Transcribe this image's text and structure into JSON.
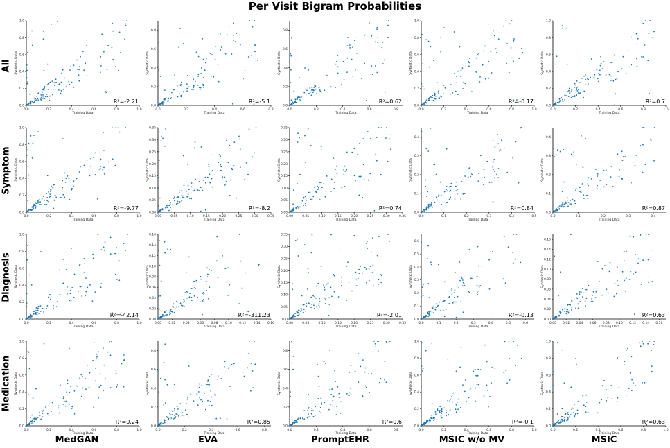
{
  "title": "Per Visit Bigram Probabilities",
  "row_labels": [
    "All",
    "Symptom",
    "Diagnosis",
    "Medication"
  ],
  "col_labels": [
    "MedGAN",
    "EVA",
    "PromptEHR",
    "MSIC w/o MV",
    "MSIC"
  ],
  "point_color": "#1f77b4",
  "chart_data": {
    "type": "scatter",
    "xlabel": "Training Data",
    "ylabel": "Synthetic Data",
    "panels": [
      {
        "row": "All",
        "model": "MedGAN",
        "r2": "R²=-2.21",
        "xlim": [
          0,
          1
        ],
        "ylim": [
          0,
          1
        ],
        "xticks": [
          "0.0",
          "0.2",
          "0.4",
          "0.6",
          "0.8",
          "1.0"
        ],
        "yticks": [
          "0.0",
          "0.2",
          "0.4",
          "0.6",
          "0.8",
          "1.0"
        ]
      },
      {
        "row": "All",
        "model": "EVA",
        "r2": "R²=-5.1",
        "xlim": [
          0,
          0.8
        ],
        "ylim": [
          0,
          0.9
        ],
        "xticks": [
          "0.0",
          "0.2",
          "0.4",
          "0.6",
          "0.8"
        ],
        "yticks": [
          "0.0",
          "0.2",
          "0.4",
          "0.6",
          "0.8"
        ]
      },
      {
        "row": "All",
        "model": "PromptEHR",
        "r2": "R²=0.62",
        "xlim": [
          0,
          0.85
        ],
        "ylim": [
          0,
          0.9
        ],
        "xticks": [
          "0.0",
          "0.2",
          "0.4",
          "0.6",
          "0.8"
        ],
        "yticks": [
          "0.0",
          "0.2",
          "0.4",
          "0.6",
          "0.8"
        ]
      },
      {
        "row": "All",
        "model": "MSIC w/o MV",
        "r2": "R²=-0.17",
        "xlim": [
          0,
          1
        ],
        "ylim": [
          0,
          1
        ],
        "xticks": [
          "0.0",
          "0.2",
          "0.4",
          "0.6",
          "0.8",
          "1.0"
        ],
        "yticks": [
          "0.0",
          "0.2",
          "0.4",
          "0.6",
          "0.8",
          "1.0"
        ]
      },
      {
        "row": "All",
        "model": "MSIC",
        "r2": "R²=0.7",
        "xlim": [
          0,
          1
        ],
        "ylim": [
          0,
          1
        ],
        "xticks": [
          "0.0",
          "0.2",
          "0.4",
          "0.6",
          "0.8",
          "1.0"
        ],
        "yticks": [
          "0.0",
          "0.2",
          "0.4",
          "0.6",
          "0.8",
          "1.0"
        ]
      },
      {
        "row": "Symptom",
        "model": "MedGAN",
        "r2": "R²=-9.77",
        "xlim": [
          0,
          1
        ],
        "ylim": [
          0,
          1
        ],
        "xticks": [
          "0.0",
          "0.2",
          "0.4",
          "0.6",
          "0.8",
          "1.0"
        ],
        "yticks": [
          "0.0",
          "0.2",
          "0.4",
          "0.6",
          "0.8",
          "1.0"
        ]
      },
      {
        "row": "Symptom",
        "model": "EVA",
        "r2": "R²=-8.2",
        "xlim": [
          0,
          0.35
        ],
        "ylim": [
          0,
          0.35
        ],
        "xticks": [
          "0.00",
          "0.05",
          "0.10",
          "0.15",
          "0.20",
          "0.25",
          "0.30",
          "0.35"
        ],
        "yticks": [
          "0.00",
          "0.05",
          "0.10",
          "0.15",
          "0.20",
          "0.25",
          "0.30",
          "0.35"
        ]
      },
      {
        "row": "Symptom",
        "model": "PromptEHR",
        "r2": "R²=0.74",
        "xlim": [
          0,
          0.35
        ],
        "ylim": [
          0,
          0.35
        ],
        "xticks": [
          "0.00",
          "0.05",
          "0.10",
          "0.15",
          "0.20",
          "0.25",
          "0.30",
          "0.35"
        ],
        "yticks": [
          "0.00",
          "0.05",
          "0.10",
          "0.15",
          "0.20",
          "0.25",
          "0.30",
          "0.35"
        ]
      },
      {
        "row": "Symptom",
        "model": "MSIC w/o MV",
        "r2": "R²=0.84",
        "xlim": [
          0,
          0.5
        ],
        "ylim": [
          0,
          0.45
        ],
        "xticks": [
          "0.0",
          "0.1",
          "0.2",
          "0.3",
          "0.4",
          "0.5"
        ],
        "yticks": [
          "0.0",
          "0.1",
          "0.2",
          "0.3",
          "0.4"
        ]
      },
      {
        "row": "Symptom",
        "model": "MSIC",
        "r2": "R²=0.87",
        "xlim": [
          0,
          0.45
        ],
        "ylim": [
          0,
          0.45
        ],
        "xticks": [
          "0.0",
          "0.1",
          "0.2",
          "0.3",
          "0.4"
        ],
        "yticks": [
          "0.0",
          "0.1",
          "0.2",
          "0.3",
          "0.4"
        ]
      },
      {
        "row": "Diagnosis",
        "model": "MedGAN",
        "r2": "R²=-42.14",
        "xlim": [
          0,
          1
        ],
        "ylim": [
          0,
          1
        ],
        "xticks": [
          "0.0",
          "0.2",
          "0.4",
          "0.6",
          "0.8",
          "1.0"
        ],
        "yticks": [
          "0.0",
          "0.2",
          "0.4",
          "0.6",
          "0.8",
          "1.0"
        ]
      },
      {
        "row": "Diagnosis",
        "model": "EVA",
        "r2": "R²=-311.23",
        "xlim": [
          0,
          0.16
        ],
        "ylim": [
          0,
          0.16
        ],
        "xticks": [
          "0.00",
          "0.02",
          "0.04",
          "0.06",
          "0.08",
          "0.10",
          "0.12",
          "0.14",
          "0.16"
        ],
        "yticks": [
          "0.00",
          "0.02",
          "0.04",
          "0.06",
          "0.08",
          "0.10",
          "0.12",
          "0.14",
          "0.16"
        ]
      },
      {
        "row": "Diagnosis",
        "model": "PromptEHR",
        "r2": "R²=-2.01",
        "xlim": [
          0,
          0.35
        ],
        "ylim": [
          0,
          0.35
        ],
        "xticks": [
          "0.00",
          "0.05",
          "0.10",
          "0.15",
          "0.20",
          "0.25",
          "0.30",
          "0.35"
        ],
        "yticks": [
          "0.00",
          "0.05",
          "0.10",
          "0.15",
          "0.20",
          "0.25",
          "0.30",
          "0.35"
        ]
      },
      {
        "row": "Diagnosis",
        "model": "MSIC w/o MV",
        "r2": "R²=-0.13",
        "xlim": [
          0,
          0.65
        ],
        "ylim": [
          0,
          0.65
        ],
        "xticks": [
          "0.0",
          "0.1",
          "0.2",
          "0.3",
          "0.4",
          "0.5",
          "0.6"
        ],
        "yticks": [
          "0.0",
          "0.1",
          "0.2",
          "0.3",
          "0.4",
          "0.5",
          "0.6"
        ]
      },
      {
        "row": "Diagnosis",
        "model": "MSIC",
        "r2": "R²=0.63",
        "xlim": [
          0,
          0.17
        ],
        "ylim": [
          0,
          0.17
        ],
        "xticks": [
          "0.00",
          "0.02",
          "0.04",
          "0.06",
          "0.08",
          "0.10",
          "0.12",
          "0.14",
          "0.16"
        ],
        "yticks": [
          "0.00",
          "0.02",
          "0.04",
          "0.06",
          "0.08",
          "0.10",
          "0.12",
          "0.14",
          "0.16"
        ]
      },
      {
        "row": "Medication",
        "model": "MedGAN",
        "r2": "R²=0.24",
        "xlim": [
          0,
          1
        ],
        "ylim": [
          0,
          1
        ],
        "xticks": [
          "0.0",
          "0.2",
          "0.4",
          "0.6",
          "0.8",
          "1.0"
        ],
        "yticks": [
          "0.0",
          "0.2",
          "0.4",
          "0.6",
          "0.8",
          "1.0"
        ]
      },
      {
        "row": "Medication",
        "model": "EVA",
        "r2": "R²=0.85",
        "xlim": [
          0,
          0.85
        ],
        "ylim": [
          0,
          0.9
        ],
        "xticks": [
          "0.0",
          "0.2",
          "0.4",
          "0.6",
          "0.8"
        ],
        "yticks": [
          "0.0",
          "0.2",
          "0.4",
          "0.6",
          "0.8"
        ]
      },
      {
        "row": "Medication",
        "model": "PromptEHR",
        "r2": "R²=0.6",
        "xlim": [
          0,
          0.85
        ],
        "ylim": [
          0,
          0.9
        ],
        "xticks": [
          "0.0",
          "0.2",
          "0.4",
          "0.6",
          "0.8"
        ],
        "yticks": [
          "0.0",
          "0.2",
          "0.4",
          "0.6",
          "0.8"
        ]
      },
      {
        "row": "Medication",
        "model": "MSIC w/o MV",
        "r2": "R²=-0.1",
        "xlim": [
          0,
          1
        ],
        "ylim": [
          0,
          1
        ],
        "xticks": [
          "0.0",
          "0.2",
          "0.4",
          "0.6",
          "0.8",
          "1.0"
        ],
        "yticks": [
          "0.0",
          "0.2",
          "0.4",
          "0.6",
          "0.8",
          "1.0"
        ]
      },
      {
        "row": "Medication",
        "model": "MSIC",
        "r2": "R²=0.63",
        "xlim": [
          0,
          1
        ],
        "ylim": [
          0,
          1
        ],
        "xticks": [
          "0.0",
          "0.2",
          "0.4",
          "0.6",
          "0.8",
          "1.0"
        ],
        "yticks": [
          "0.0",
          "0.2",
          "0.4",
          "0.6",
          "0.8",
          "1.0"
        ]
      }
    ]
  }
}
